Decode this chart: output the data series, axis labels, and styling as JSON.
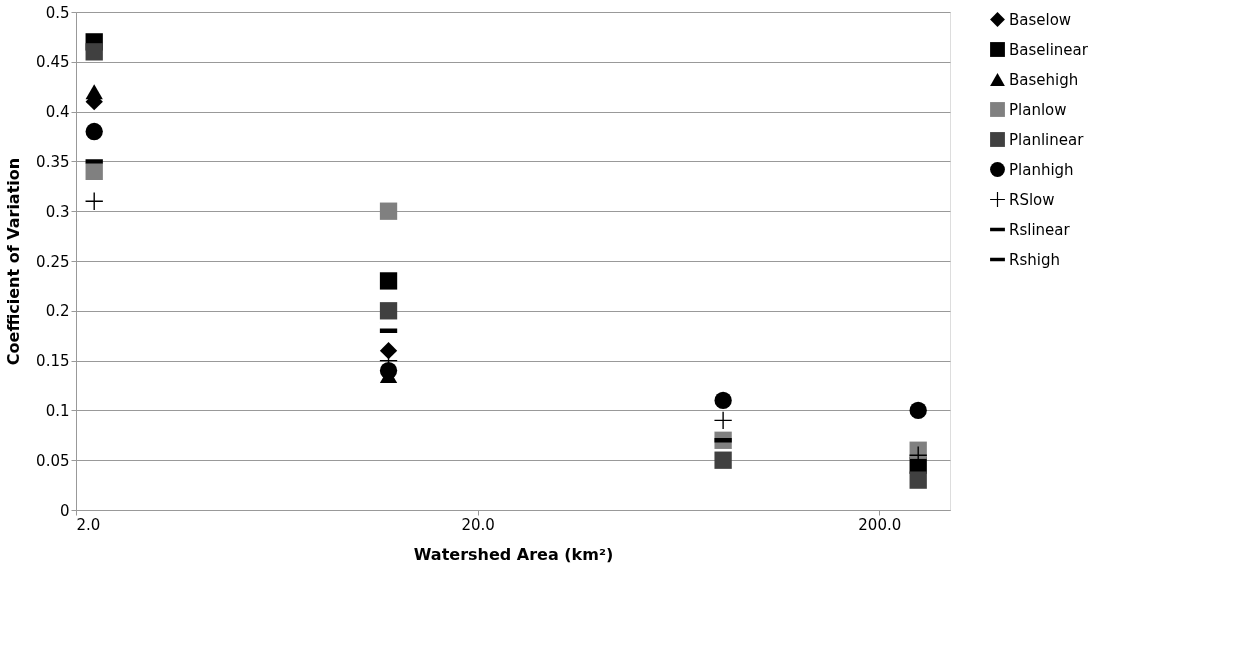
{
  "chart_data": {
    "type": "scatter",
    "xlabel": "Watershed Area (km²)",
    "ylabel": "Coefficient of Variation",
    "x": [
      2.22,
      12,
      81.7,
      250
    ],
    "log": "x",
    "xlim": [
      2,
      300
    ],
    "xticks": [
      {
        "value": 2,
        "label": "2.0"
      },
      {
        "value": 20,
        "label": "20.0"
      },
      {
        "value": 200,
        "label": "200.0"
      }
    ],
    "ylim": [
      0,
      0.5
    ],
    "yticks": [
      0,
      0.05,
      0.1,
      0.15,
      0.2,
      0.25,
      0.3,
      0.35,
      0.4,
      0.45,
      0.5
    ],
    "grid": "y",
    "legend": "right",
    "series": [
      {
        "name": "Baselow",
        "color": "#000000",
        "marker": "diamond",
        "values": [
          0.41,
          0.16,
          null,
          null
        ]
      },
      {
        "name": "Baselinear",
        "color": "#000000",
        "marker": "square",
        "values": [
          0.47,
          0.23,
          null,
          0.045
        ]
      },
      {
        "name": "Basehigh",
        "color": "#000000",
        "marker": "triangle",
        "values": [
          0.42,
          0.135,
          null,
          null
        ]
      },
      {
        "name": "Planlow",
        "color": "#808080",
        "marker": "square",
        "values": [
          0.34,
          0.3,
          0.07,
          0.06
        ]
      },
      {
        "name": "Planlinear",
        "color": "#404040",
        "marker": "square",
        "values": [
          0.46,
          0.2,
          0.05,
          0.03
        ]
      },
      {
        "name": "Planhigh",
        "color": "#000000",
        "marker": "circle",
        "values": [
          0.38,
          0.14,
          0.11,
          0.1
        ]
      },
      {
        "name": "RSlow",
        "color": "#000000",
        "marker": "cross",
        "values": [
          0.31,
          0.15,
          0.09,
          0.055
        ]
      },
      {
        "name": "Rslinear",
        "color": "#000000",
        "values": [
          null,
          null,
          0.07,
          null
        ]
      },
      {
        "name": "Rshigh",
        "color": "#000000",
        "values": [
          0.35,
          0.18,
          null,
          null
        ]
      }
    ]
  }
}
